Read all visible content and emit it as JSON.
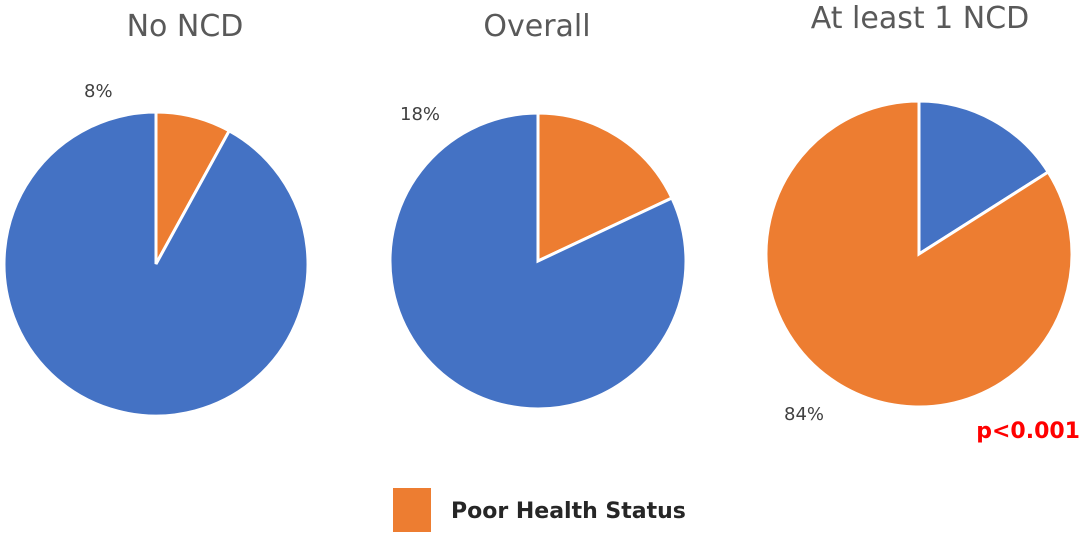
{
  "chart_data": [
    {
      "type": "pie",
      "title": "No NCD",
      "slices": [
        {
          "label": "Poor Health Status",
          "value": 8,
          "display": "8%",
          "color": "#ED7D31"
        },
        {
          "label": "",
          "value": 92,
          "display": "",
          "color": "#4472C4"
        }
      ]
    },
    {
      "type": "pie",
      "title": "Overall",
      "slices": [
        {
          "label": "Poor Health Status",
          "value": 18,
          "display": "18%",
          "color": "#ED7D31"
        },
        {
          "label": "",
          "value": 82,
          "display": "",
          "color": "#4472C4"
        }
      ]
    },
    {
      "type": "pie",
      "title": "At least 1 NCD",
      "annotation": "p<0.001",
      "annotation_color": "#FF0000",
      "slices": [
        {
          "label": "",
          "value": 16,
          "display": "",
          "color": "#4472C4"
        },
        {
          "label": "Poor Health Status",
          "value": 84,
          "display": "84%",
          "color": "#ED7D31"
        }
      ]
    }
  ],
  "legend": {
    "label": "Poor Health Status",
    "color": "#ED7D31",
    "placement": "bottom-center"
  }
}
